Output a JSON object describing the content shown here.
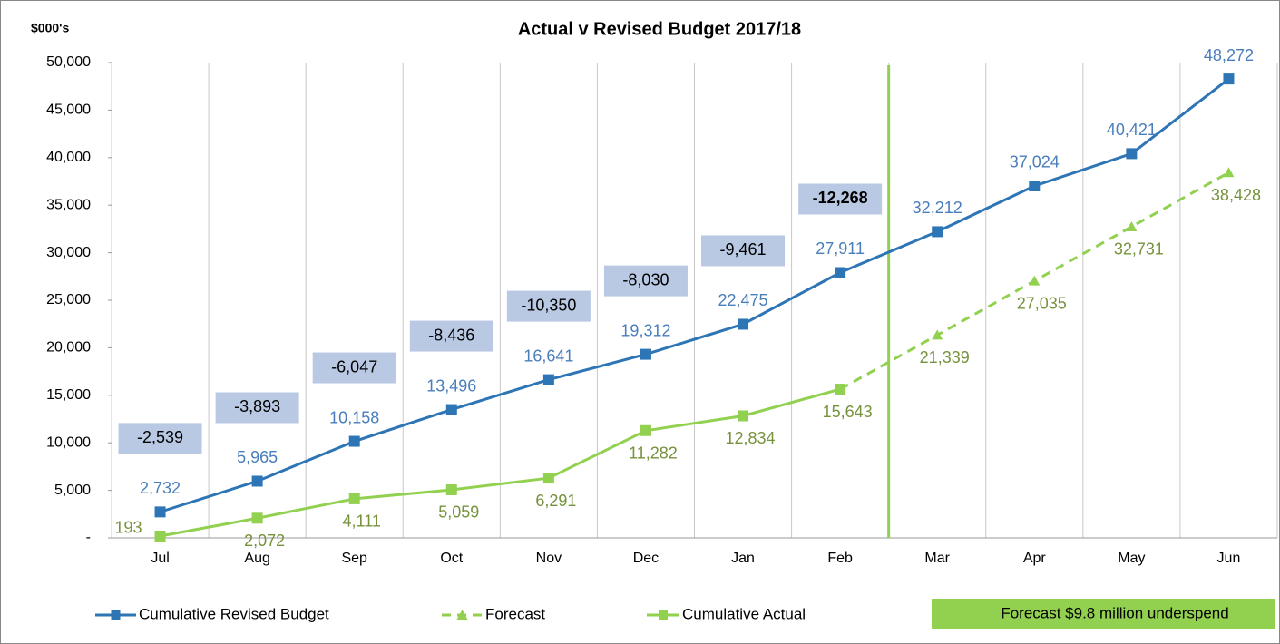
{
  "chart_data": {
    "type": "line",
    "title": "Actual v  Revised Budget  2017/18",
    "y_axis_label": "$000's",
    "categories": [
      "Jul",
      "Aug",
      "Sep",
      "Oct",
      "Nov",
      "Dec",
      "Jan",
      "Feb",
      "Mar",
      "Apr",
      "May",
      "Jun"
    ],
    "series": [
      {
        "name": "Cumulative Revised  Budget",
        "color": "#2e75b6",
        "marker": "square",
        "values": [
          2732,
          5965,
          10158,
          13496,
          16641,
          19312,
          22475,
          27911,
          32212,
          37024,
          40421,
          48272
        ],
        "value_labels": [
          "2,732",
          "5,965",
          "10,158",
          "13,496",
          "16,641",
          "19,312",
          "22,475",
          "27,911",
          "32,212",
          "37,024",
          "40,421",
          "48,272"
        ]
      },
      {
        "name": "Forecast",
        "color": "#92d050",
        "marker": "triangle",
        "dashed": true,
        "values": [
          null,
          null,
          null,
          null,
          null,
          null,
          null,
          15643,
          21339,
          27035,
          32731,
          38428
        ],
        "value_labels": [
          null,
          null,
          null,
          null,
          null,
          null,
          null,
          null,
          "21,339",
          "27,035",
          "32,731",
          "38,428"
        ]
      },
      {
        "name": "Cumulative Actual",
        "color": "#92d050",
        "marker": "square",
        "values": [
          193,
          2072,
          4111,
          5059,
          6291,
          11282,
          12834,
          15643,
          null,
          null,
          null,
          null
        ],
        "value_labels": [
          "193",
          "2,072",
          "4,111",
          "5,059",
          "6,291",
          "11,282",
          "12,834",
          "15,643",
          null,
          null,
          null,
          null
        ]
      }
    ],
    "variance": {
      "values": [
        -2539,
        -3893,
        -6047,
        -8436,
        -10350,
        -8030,
        -9461,
        -12268
      ],
      "value_labels": [
        "-2,539",
        "-3,893",
        "-6,047",
        "-8,436",
        "-10,350",
        "-8,030",
        "-9,461",
        "-12,268"
      ]
    },
    "callout": "Forecast $9.8 million underspend",
    "ylim": [
      0,
      50000
    ],
    "yticks": [
      {
        "value": 0,
        "label": "-"
      },
      {
        "value": 5000,
        "label": "5,000"
      },
      {
        "value": 10000,
        "label": "10,000"
      },
      {
        "value": 15000,
        "label": "15,000"
      },
      {
        "value": 20000,
        "label": "20,000"
      },
      {
        "value": 25000,
        "label": "25,000"
      },
      {
        "value": 30000,
        "label": "30,000"
      },
      {
        "value": 35000,
        "label": "35,000"
      },
      {
        "value": 40000,
        "label": "40,000"
      },
      {
        "value": 45000,
        "label": "45,000"
      },
      {
        "value": 50000,
        "label": "50,000"
      }
    ],
    "grid": "vertical"
  }
}
